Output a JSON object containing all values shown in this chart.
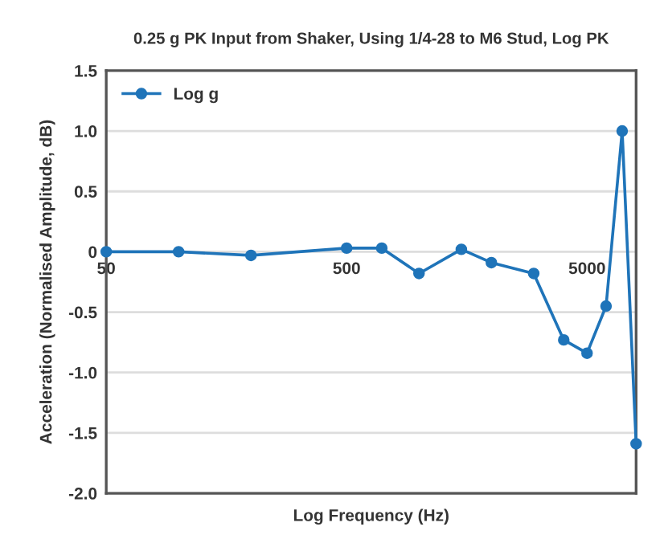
{
  "chart_data": {
    "type": "line",
    "title": "0.25 g PK Input from Shaker, Using 1/4-28 to M6 Stud, Log PK",
    "xlabel": "Log Frequency (Hz)",
    "ylabel": "Acceleration (Normalised Amplitude, dB)",
    "x": [
      50,
      100,
      200,
      500,
      700,
      1000,
      1500,
      2000,
      3000,
      4000,
      5000,
      6000,
      7000,
      8000
    ],
    "series": [
      {
        "name": "Log g",
        "color": "#1f74b9",
        "values": [
          0,
          0,
          -0.03,
          0.03,
          0.03,
          -0.18,
          0.02,
          -0.09,
          -0.18,
          -0.73,
          -0.84,
          -0.45,
          1.0,
          -1.59
        ]
      }
    ],
    "log": "x",
    "xlim": [
      50,
      8000
    ],
    "xticks": [
      50,
      500,
      5000
    ],
    "ylim": [
      -2,
      1.5
    ],
    "yticks": [
      1.5,
      {
        "value": 1,
        "label": "1.0"
      },
      0.5,
      0,
      {
        "value": -0.5,
        "label": "-0.5"
      },
      {
        "value": -1,
        "label": "-1.0"
      },
      {
        "value": -1.5,
        "label": "-1.5"
      },
      {
        "value": -2,
        "label": "-2.0"
      }
    ],
    "grid": "y",
    "legend": "top left",
    "marker": "circle",
    "line_style": "solid"
  }
}
